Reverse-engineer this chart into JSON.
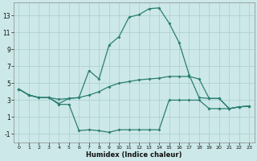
{
  "xlabel": "Humidex (Indice chaleur)",
  "x": [
    0,
    1,
    2,
    3,
    4,
    5,
    6,
    7,
    8,
    9,
    10,
    11,
    12,
    13,
    14,
    15,
    16,
    17,
    18,
    19,
    20,
    21,
    22,
    23
  ],
  "line_max": [
    4.3,
    3.6,
    3.3,
    3.3,
    2.6,
    3.2,
    3.3,
    6.5,
    5.5,
    9.5,
    10.5,
    12.8,
    13.1,
    13.8,
    13.9,
    12.1,
    9.8,
    6.0,
    3.3,
    3.2,
    3.2,
    2.0,
    2.2,
    2.3
  ],
  "line_mean": [
    4.3,
    3.6,
    3.3,
    3.3,
    3.1,
    3.2,
    3.3,
    3.6,
    4.0,
    4.6,
    5.0,
    5.2,
    5.4,
    5.5,
    5.6,
    5.8,
    5.8,
    5.8,
    5.5,
    3.2,
    3.2,
    2.0,
    2.2,
    2.3
  ],
  "line_min": [
    4.3,
    3.6,
    3.3,
    3.3,
    2.5,
    2.5,
    -0.6,
    -0.5,
    -0.6,
    -0.8,
    -0.5,
    -0.5,
    -0.5,
    -0.5,
    -0.5,
    3.0,
    3.0,
    3.0,
    3.0,
    2.0,
    2.0,
    2.0,
    2.2,
    2.3
  ],
  "color": "#2a7f72",
  "bg_color": "#cce8e8",
  "grid_color": "#aacece",
  "ylim": [
    -2,
    14.5
  ],
  "xlim": [
    -0.5,
    23.5
  ],
  "yticks": [
    -1,
    1,
    3,
    5,
    7,
    9,
    11,
    13
  ],
  "xticks": [
    0,
    1,
    2,
    3,
    4,
    5,
    6,
    7,
    8,
    9,
    10,
    11,
    12,
    13,
    14,
    15,
    16,
    17,
    18,
    19,
    20,
    21,
    22,
    23
  ],
  "xlabel_fontsize": 6.0,
  "tick_fontsize_x": 4.5,
  "tick_fontsize_y": 5.5,
  "linewidth": 0.9,
  "markersize": 2.0
}
